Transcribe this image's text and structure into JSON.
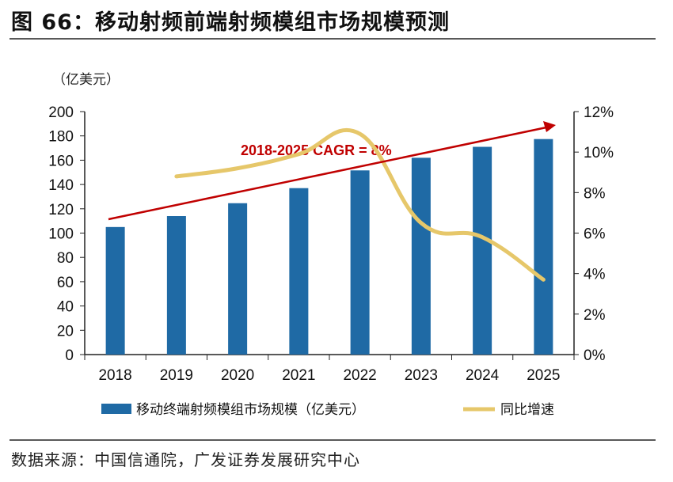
{
  "title": "图 66：移动射频前端射频模组市场规模预测",
  "source": "数据来源：中国信通院，广发证券发展研究中心",
  "chart_data": {
    "type": "bar+line",
    "categories": [
      "2018",
      "2019",
      "2020",
      "2021",
      "2022",
      "2023",
      "2024",
      "2025"
    ],
    "ylabel_left": "（亿美元）",
    "ylim_left": [
      0,
      200
    ],
    "yticks_left": [
      "0",
      "20",
      "40",
      "60",
      "80",
      "100",
      "120",
      "140",
      "160",
      "180",
      "200"
    ],
    "ylim_right": [
      0,
      12
    ],
    "yticks_right": [
      "0%",
      "2%",
      "4%",
      "6%",
      "8%",
      "10%",
      "12%"
    ],
    "series": [
      {
        "name": "移动终端射频模组市场规模（亿美元）",
        "type": "bar",
        "axis": "left",
        "color": "#1F6AA5",
        "values": [
          105,
          114,
          124.6,
          137,
          151.6,
          162,
          171,
          177.4
        ]
      },
      {
        "name": "同比增速",
        "type": "line",
        "axis": "right",
        "color": "#E6C76A",
        "values": [
          null,
          8.8,
          9.2,
          9.9,
          10.9,
          6.5,
          5.8,
          3.7
        ]
      }
    ],
    "annotation": {
      "text": "2018-2025 CAGR = 8%",
      "color": "#C00000"
    },
    "legend": "bottom",
    "grid": false
  }
}
